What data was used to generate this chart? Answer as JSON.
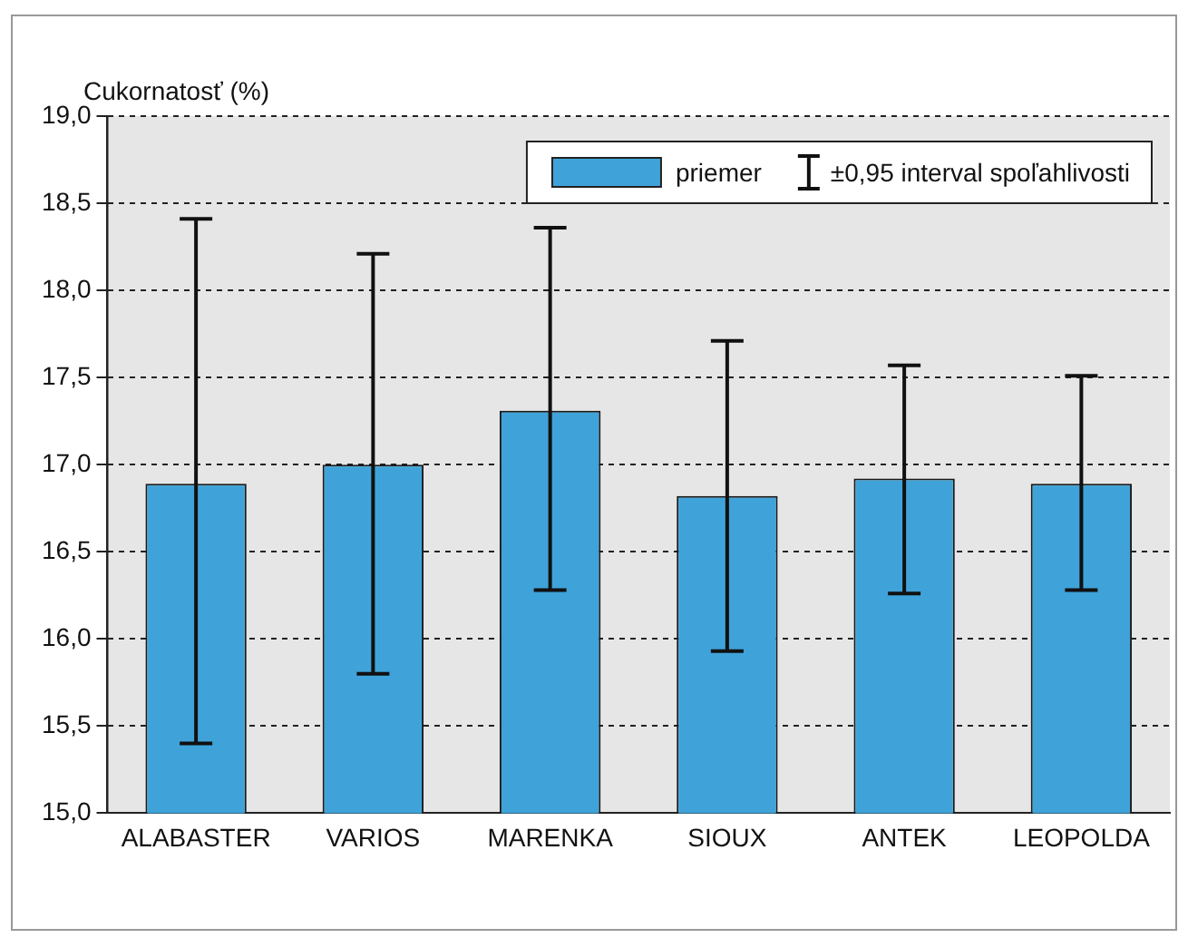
{
  "chart_data": {
    "type": "bar",
    "ylabel": "Cukornatosť (%)",
    "categories": [
      "ALABASTER",
      "VARIOS",
      "MARENKA",
      "SIOUX",
      "ANTEK",
      "LEOPOLDA"
    ],
    "series": [
      {
        "name": "priemer",
        "color": "#3fa3d9",
        "values": [
          16.89,
          17.0,
          17.31,
          16.82,
          16.92,
          16.89
        ],
        "errors": [
          [
            15.4,
            18.41
          ],
          [
            15.8,
            18.21
          ],
          [
            16.28,
            18.36
          ],
          [
            15.93,
            17.71
          ],
          [
            16.26,
            17.57
          ],
          [
            16.28,
            17.51
          ]
        ]
      }
    ],
    "ylim": [
      15,
      19
    ],
    "yticks": [
      {
        "value": 15,
        "label": "15,0"
      },
      {
        "value": 15.5,
        "label": "15,5"
      },
      {
        "value": 16,
        "label": "16,0"
      },
      {
        "value": 16.5,
        "label": "16,5"
      },
      {
        "value": 17,
        "label": "17,0"
      },
      {
        "value": 17.5,
        "label": "17,5"
      },
      {
        "value": 18,
        "label": "18,0"
      },
      {
        "value": 18.5,
        "label": "18,5"
      },
      {
        "value": 19,
        "label": "19,0"
      }
    ],
    "annotations": [
      "±0,95 interval spoľahlivosti"
    ],
    "grid": "y",
    "legend": "top right"
  }
}
